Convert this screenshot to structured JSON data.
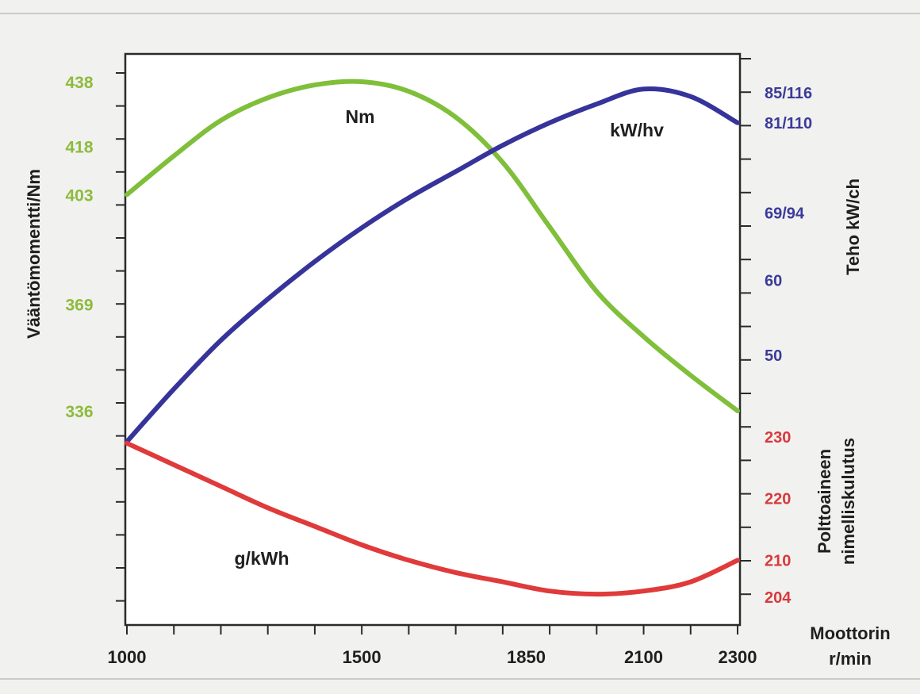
{
  "chart_data": {
    "type": "line",
    "x_ticks": [
      1000,
      1500,
      1850,
      2100,
      2300
    ],
    "xlim": [
      1000,
      2300
    ],
    "x_title_lines": [
      "Moottorin",
      "r/min"
    ],
    "left_axis": {
      "title": "Vääntömomentti/Nm",
      "ticks": [
        336,
        369,
        403,
        418,
        438
      ],
      "color": "#8dbb3c"
    },
    "right_upper_axis": {
      "title": "Teho kW/ch",
      "ticks": [
        "50",
        "60",
        "69/94",
        "81/110",
        "85/116"
      ],
      "tick_values": [
        50,
        60,
        69,
        81,
        85
      ],
      "color": "#3b3a9a"
    },
    "right_lower_axis": {
      "title_lines": [
        "Polttoaineen",
        "nimelliskulutus"
      ],
      "ticks": [
        204,
        210,
        220,
        230
      ],
      "color": "#d8393c"
    },
    "series": [
      {
        "name": "Nm",
        "axis": "left",
        "color": "#7fbf3a",
        "x": [
          1000,
          1100,
          1200,
          1300,
          1400,
          1500,
          1600,
          1700,
          1800,
          1900,
          2000,
          2100,
          2200,
          2300
        ],
        "y": [
          403,
          415,
          426,
          433,
          437,
          438,
          435,
          427,
          413,
          393,
          373,
          359,
          347,
          336
        ]
      },
      {
        "name": "kW/hv",
        "axis": "right_upper",
        "color": "#36349a",
        "x": [
          1000,
          1100,
          1200,
          1300,
          1400,
          1500,
          1600,
          1700,
          1800,
          1900,
          2000,
          2100,
          2200,
          2300
        ],
        "y": [
          38.5,
          45.5,
          52,
          57.5,
          62.5,
          67,
          71,
          74.5,
          78,
          81,
          83.5,
          85.5,
          84.5,
          81
        ]
      },
      {
        "name": "g/kWh",
        "axis": "right_lower",
        "color": "#e03a3a",
        "x": [
          1000,
          1100,
          1200,
          1300,
          1400,
          1500,
          1600,
          1700,
          1800,
          1900,
          2000,
          2100,
          2200,
          2300
        ],
        "y": [
          229,
          225.5,
          222,
          218.5,
          215.5,
          212.5,
          210,
          208,
          206.5,
          205,
          204.5,
          205,
          206.5,
          210
        ]
      }
    ],
    "grid": false,
    "legend": "none"
  }
}
